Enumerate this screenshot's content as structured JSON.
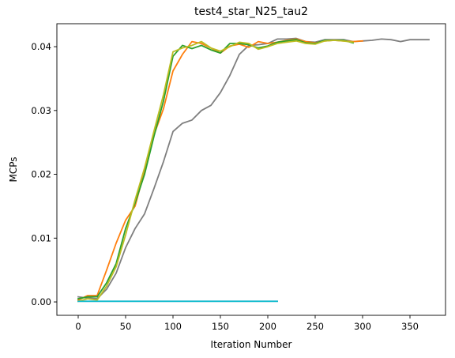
{
  "chart_data": {
    "type": "line",
    "title": "test4_star_N25_tau2",
    "xlabel": "Iteration Number",
    "ylabel": "MCPs",
    "xlim": [
      -22.5,
      387.5
    ],
    "ylim": [
      -0.0021,
      0.0436
    ],
    "xticks": [
      0,
      50,
      100,
      150,
      200,
      250,
      300,
      350
    ],
    "yticks": [
      0.0,
      0.01,
      0.02,
      0.03,
      0.04
    ],
    "ytick_labels": [
      "0.00",
      "0.01",
      "0.02",
      "0.03",
      "0.04"
    ],
    "grid": false,
    "series": [
      {
        "color": "#1f77b4",
        "x": [
          0,
          210
        ],
        "y": [
          0.0001,
          0.0001
        ]
      },
      {
        "color": "#7f7f7f",
        "x": [
          0,
          10,
          20,
          30,
          40,
          50,
          60,
          70,
          80,
          90,
          100,
          110,
          120,
          130,
          140,
          150,
          160,
          170,
          180,
          190,
          200,
          210,
          220,
          230,
          240,
          250,
          260,
          270,
          280,
          290,
          300,
          310,
          320,
          330,
          340,
          350,
          360,
          370
        ],
        "y": [
          0.0008,
          0.0006,
          0.0005,
          0.002,
          0.0045,
          0.0085,
          0.0115,
          0.0138,
          0.0178,
          0.022,
          0.0267,
          0.028,
          0.0285,
          0.03,
          0.0308,
          0.0328,
          0.0355,
          0.0388,
          0.0402,
          0.0403,
          0.0405,
          0.0412,
          0.0412,
          0.0413,
          0.0408,
          0.0407,
          0.0411,
          0.0411,
          0.0411,
          0.0408,
          0.0409,
          0.041,
          0.0412,
          0.0411,
          0.0408,
          0.0411,
          0.0411,
          0.0411
        ]
      },
      {
        "color": "#ff7f0e",
        "x": [
          0,
          10,
          20,
          30,
          40,
          50,
          60,
          70,
          80,
          90,
          100,
          110,
          120,
          130,
          140,
          150,
          160,
          170,
          180,
          190,
          200,
          210,
          220,
          230,
          240,
          250,
          260,
          270,
          280,
          290,
          300
        ],
        "y": [
          0.0003,
          0.001,
          0.001,
          0.005,
          0.0092,
          0.0128,
          0.015,
          0.0205,
          0.0262,
          0.0303,
          0.0362,
          0.0388,
          0.0408,
          0.0405,
          0.0398,
          0.039,
          0.0401,
          0.0404,
          0.0399,
          0.0408,
          0.0405,
          0.0407,
          0.041,
          0.0412,
          0.0408,
          0.0406,
          0.0409,
          0.041,
          0.0409,
          0.0408,
          0.0409
        ]
      },
      {
        "color": "#2ca02c",
        "x": [
          0,
          10,
          20,
          30,
          40,
          50,
          60,
          70,
          80,
          90,
          100,
          110,
          120,
          130,
          140,
          150,
          160,
          170,
          180,
          190,
          200,
          210,
          220,
          230,
          240,
          250,
          260,
          270,
          280,
          290
        ],
        "y": [
          0.0005,
          0.0008,
          0.0008,
          0.003,
          0.006,
          0.0115,
          0.0155,
          0.02,
          0.026,
          0.0315,
          0.0385,
          0.0402,
          0.0397,
          0.0402,
          0.0395,
          0.039,
          0.0405,
          0.0405,
          0.0403,
          0.0398,
          0.0401,
          0.0407,
          0.0409,
          0.0411,
          0.0406,
          0.0405,
          0.041,
          0.041,
          0.041,
          0.0406
        ]
      },
      {
        "color": "#bcbd22",
        "x": [
          0,
          10,
          20,
          30,
          40,
          50,
          60,
          70,
          80,
          90,
          100,
          110,
          120,
          130,
          140,
          150,
          160,
          170,
          180,
          190,
          200,
          210,
          220,
          230,
          240,
          250,
          260,
          270,
          280,
          290
        ],
        "y": [
          0.0001,
          0.0005,
          0.0003,
          0.0025,
          0.0055,
          0.0105,
          0.016,
          0.021,
          0.0268,
          0.0325,
          0.0392,
          0.0398,
          0.0402,
          0.0408,
          0.0398,
          0.0393,
          0.04,
          0.0407,
          0.0405,
          0.0396,
          0.04,
          0.0405,
          0.0407,
          0.0409,
          0.0405,
          0.0404,
          0.0409,
          0.041,
          0.0409,
          0.0407
        ]
      },
      {
        "color": "#17becf",
        "x": [
          0,
          210
        ],
        "y": [
          0.0001,
          0.0001
        ]
      }
    ]
  }
}
